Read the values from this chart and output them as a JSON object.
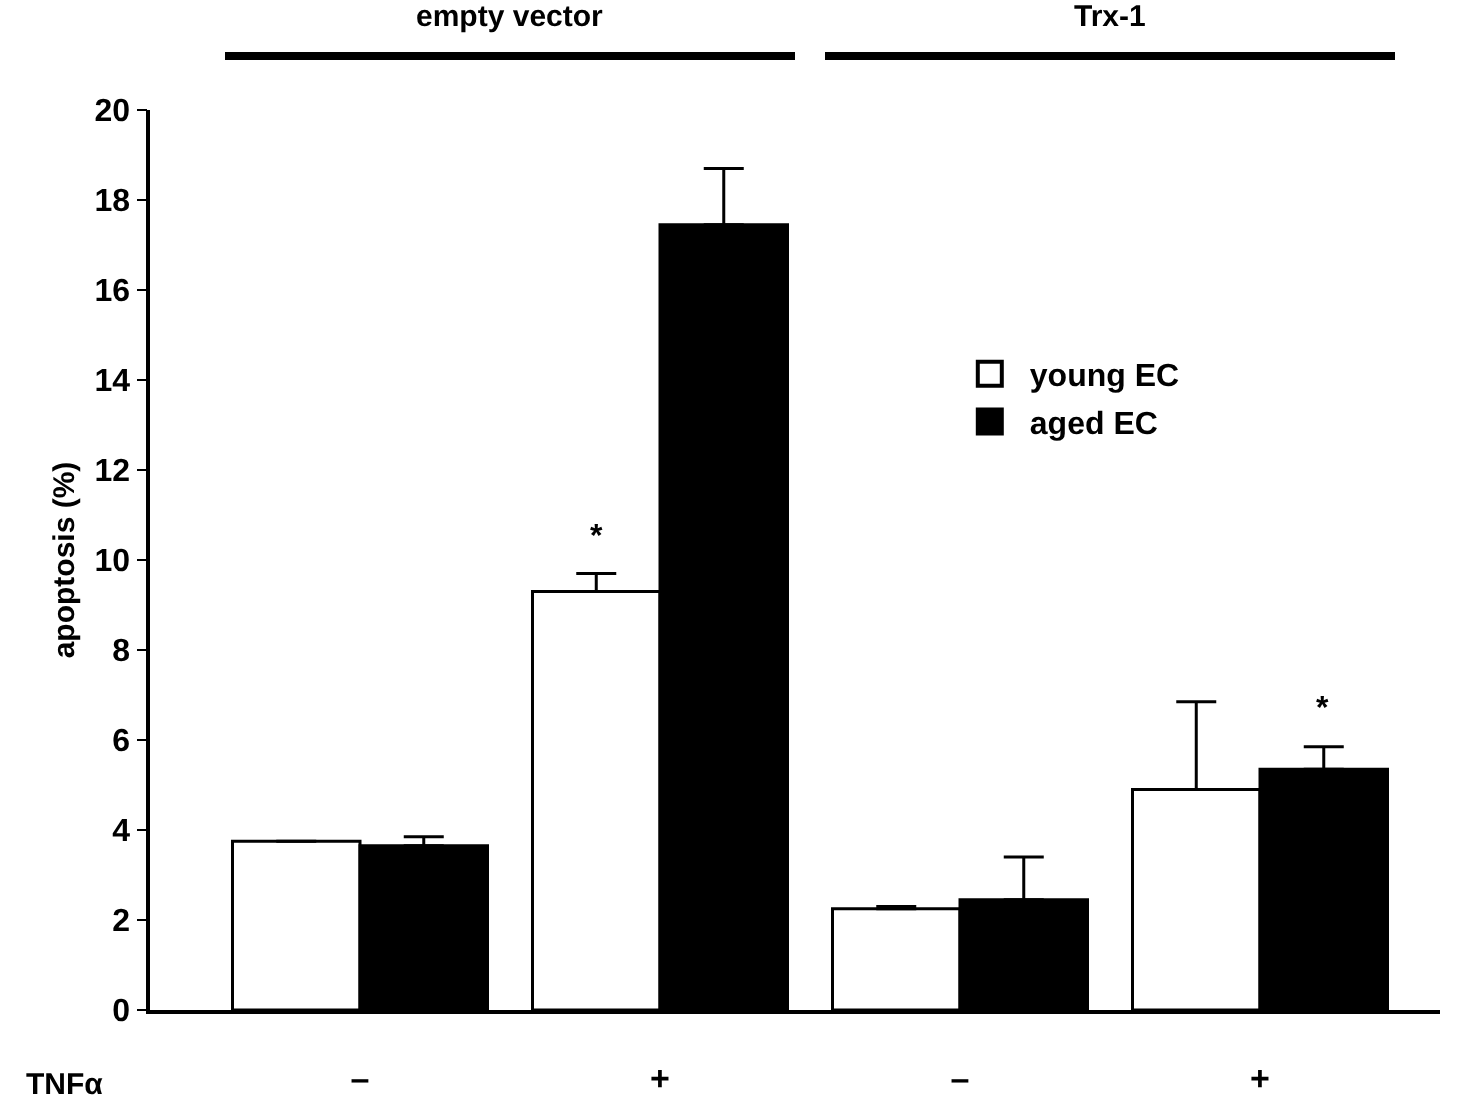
{
  "chart_data": {
    "type": "bar",
    "ylabel": "apoptosis (%)",
    "xlabel": "TNFα",
    "categories": [
      "–",
      "+",
      "–",
      "+"
    ],
    "series": [
      {
        "name": "young EC",
        "color": "#ffffff",
        "values": [
          3.75,
          9.3,
          2.25,
          4.9
        ],
        "errors": [
          null,
          [
            9.3,
            9.7
          ],
          [
            2.25,
            2.3
          ],
          [
            4.9,
            6.85
          ]
        ]
      },
      {
        "name": "aged EC",
        "color": "#000000",
        "values": [
          3.65,
          17.45,
          2.45,
          5.35
        ],
        "errors": [
          [
            3.65,
            3.85
          ],
          [
            17.45,
            18.7
          ],
          [
            2.45,
            3.4
          ],
          [
            5.35,
            5.85
          ]
        ]
      }
    ],
    "ylim": [
      0,
      20
    ],
    "yticks": [
      0,
      2,
      4,
      6,
      8,
      10,
      12,
      14,
      16,
      18,
      20
    ],
    "annotations": [
      "*",
      "*",
      "empty vector",
      "Trx-1"
    ],
    "legend": "right"
  }
}
